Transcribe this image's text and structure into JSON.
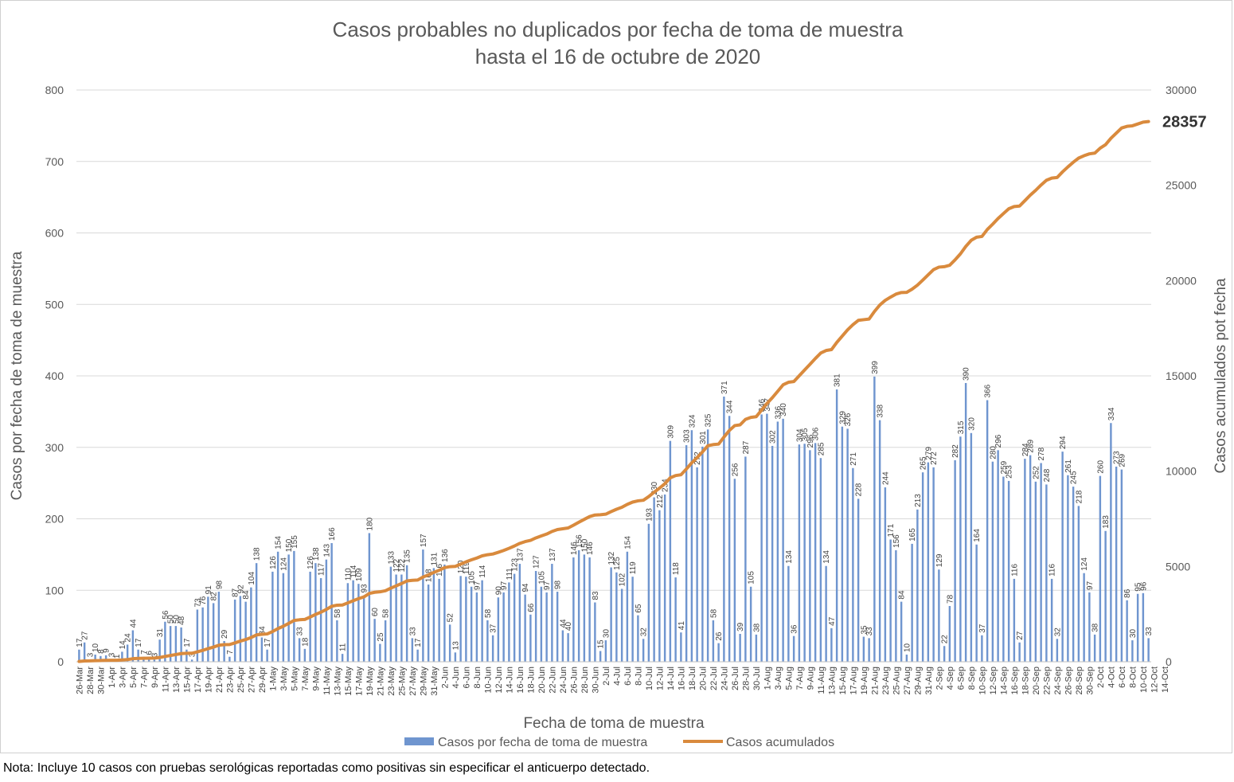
{
  "chart_data": {
    "type": "bar+line",
    "title": [
      "Casos probables no duplicados por fecha de toma de muestra",
      "hasta el  16 de octubre de 2020"
    ],
    "xlabel": "Fecha de toma de muestra",
    "ylabel_left": "Casos por fecha de toma de muestra",
    "ylabel_right": "Casos acumulados pot fecha",
    "ylim_left": [
      0,
      800
    ],
    "yticks_left": [
      0,
      100,
      200,
      300,
      400,
      500,
      600,
      700,
      800
    ],
    "ylim_right": [
      0,
      30000
    ],
    "yticks_right": [
      0,
      5000,
      10000,
      15000,
      20000,
      25000,
      30000
    ],
    "start_date": "2020-03-26",
    "x_tick_labels": [
      "26-Mar",
      "28-Mar",
      "30-Mar",
      "1-Apr",
      "3-Apr",
      "5-Apr",
      "7-Apr",
      "9-Apr",
      "11-Apr",
      "13-Apr",
      "15-Apr",
      "17-Apr",
      "19-Apr",
      "21-Apr",
      "23-Apr",
      "25-Apr",
      "27-Apr",
      "29-Apr",
      "1-May",
      "3-May",
      "5-May",
      "7-May",
      "9-May",
      "11-May",
      "13-May",
      "15-May",
      "17-May",
      "19-May",
      "21-May",
      "23-May",
      "25-May",
      "27-May",
      "29-May",
      "31-May",
      "2-Jun",
      "4-Jun",
      "6-Jun",
      "8-Jun",
      "10-Jun",
      "12-Jun",
      "14-Jun",
      "16-Jun",
      "18-Jun",
      "20-Jun",
      "22-Jun",
      "24-Jun",
      "26-Jun",
      "28-Jun",
      "30-Jun",
      "2-Jul",
      "4-Jul",
      "6-Jul",
      "8-Jul",
      "10-Jul",
      "12-Jul",
      "14-Jul",
      "16-Jul",
      "18-Jul",
      "20-Jul",
      "22-Jul",
      "24-Jul",
      "26-Jul",
      "28-Jul",
      "30-Jul",
      "1-Aug",
      "3-Aug",
      "5-Aug",
      "7-Aug",
      "9-Aug",
      "11-Aug",
      "13-Aug",
      "15-Aug",
      "17-Aug",
      "19-Aug",
      "21-Aug",
      "23-Aug",
      "25-Aug",
      "27-Aug",
      "29-Aug",
      "31-Aug",
      "2-Sep",
      "4-Sep",
      "6-Sep",
      "8-Sep",
      "10-Sep",
      "12-Sep",
      "14-Sep",
      "16-Sep",
      "18-Sep",
      "20-Sep",
      "22-Sep",
      "24-Sep",
      "26-Sep",
      "28-Sep",
      "30-Sep",
      "2-Oct",
      "4-Oct",
      "6-Oct",
      "8-Oct",
      "10-Oct",
      "12-Oct",
      "14-Oct"
    ],
    "series": [
      {
        "name": "Casos por fecha de toma de muestra",
        "type": "bar",
        "color": "#6f95cf",
        "values": [
          17,
          27,
          3,
          10,
          8,
          9,
          3,
          1,
          14,
          24,
          44,
          17,
          7,
          6,
          3,
          31,
          56,
          50,
          50,
          48,
          17,
          3,
          73,
          76,
          91,
          82,
          98,
          29,
          7,
          87,
          92,
          84,
          104,
          138,
          34,
          17,
          126,
          154,
          124,
          150,
          155,
          33,
          18,
          126,
          138,
          117,
          143,
          166,
          58,
          11,
          110,
          114,
          109,
          93,
          180,
          60,
          25,
          58,
          133,
          122,
          122,
          135,
          33,
          17,
          157,
          108,
          131,
          116,
          136,
          52,
          13,
          120,
          119,
          105,
          97,
          114,
          58,
          37,
          90,
          97,
          111,
          123,
          137,
          94,
          66,
          127,
          105,
          97,
          137,
          98,
          44,
          40,
          146,
          156,
          150,
          146,
          83,
          15,
          30,
          132,
          125,
          102,
          154,
          119,
          65,
          32,
          193,
          230,
          212,
          234,
          309,
          118,
          41,
          303,
          324,
          272,
          301,
          325,
          58,
          26,
          371,
          344,
          256,
          39,
          287,
          105,
          38,
          346,
          347,
          302,
          336,
          340,
          134,
          36,
          304,
          305,
          296,
          306,
          285,
          134,
          47,
          381,
          329,
          326,
          271,
          228,
          35,
          33,
          399,
          338,
          244,
          171,
          156,
          84,
          10,
          165,
          213,
          265,
          279,
          272,
          129,
          22,
          78,
          282,
          315,
          390,
          320,
          164,
          37,
          366,
          280,
          296,
          259,
          253,
          116,
          27,
          284,
          289,
          252,
          278,
          248,
          116,
          32,
          294,
          261,
          245,
          218,
          124,
          97,
          38,
          260,
          183,
          334,
          273,
          269,
          86,
          30,
          95,
          96,
          33
        ]
      },
      {
        "name": "Casos acumulados",
        "type": "line",
        "color": "#d98a3d",
        "end_value": 28357
      }
    ],
    "end_label": "28357",
    "legend_placement": "bottom",
    "grid": true
  },
  "note": "Nota: Incluye 10 casos con pruebas serológicas reportadas como positivas sin especificar el anticuerpo detectado."
}
